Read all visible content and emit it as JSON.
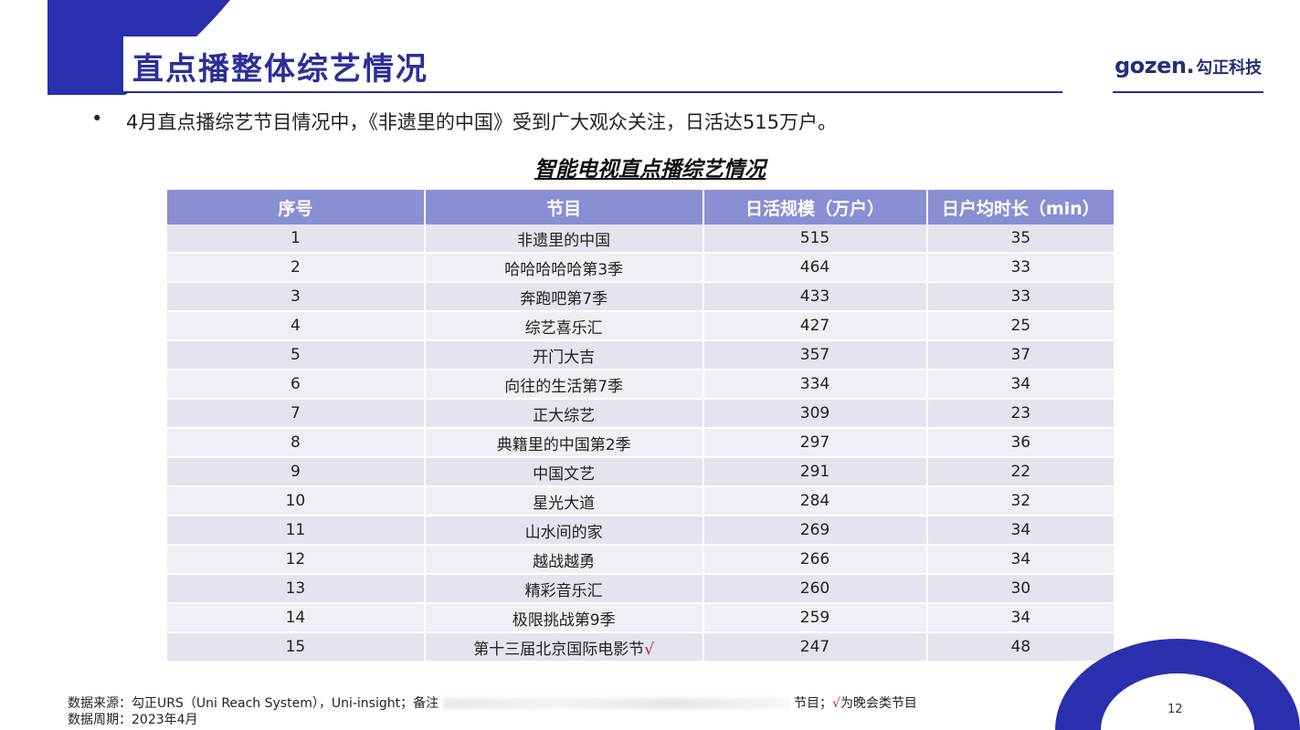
{
  "slide": {
    "title": "直点播整体综艺情况",
    "page_number": "12",
    "accent_color": "#2a2fae",
    "header_color": "#8a8fd4"
  },
  "logo": {
    "en": "gozen",
    "separator": ".",
    "cn": "勾正科技"
  },
  "bullet": {
    "symbol": "•",
    "text": "4月直点播综艺节目情况中，《非遗里的中国》受到广大观众关注，日活达515万户。"
  },
  "table": {
    "title": "智能电视直点播综艺情况",
    "headers": [
      "序号",
      "节目",
      "日活规模（万户）",
      "日户均时长（min）"
    ],
    "rows": [
      {
        "rank": "1",
        "program": "非遗里的中国",
        "dau": "515",
        "duration": "35",
        "mark": ""
      },
      {
        "rank": "2",
        "program": "哈哈哈哈哈第3季",
        "dau": "464",
        "duration": "33",
        "mark": ""
      },
      {
        "rank": "3",
        "program": "奔跑吧第7季",
        "dau": "433",
        "duration": "33",
        "mark": ""
      },
      {
        "rank": "4",
        "program": "综艺喜乐汇",
        "dau": "427",
        "duration": "25",
        "mark": ""
      },
      {
        "rank": "5",
        "program": "开门大吉",
        "dau": "357",
        "duration": "37",
        "mark": ""
      },
      {
        "rank": "6",
        "program": "向往的生活第7季",
        "dau": "334",
        "duration": "34",
        "mark": ""
      },
      {
        "rank": "7",
        "program": "正大综艺",
        "dau": "309",
        "duration": "23",
        "mark": ""
      },
      {
        "rank": "8",
        "program": "典籍里的中国第2季",
        "dau": "297",
        "duration": "36",
        "mark": ""
      },
      {
        "rank": "9",
        "program": "中国文艺",
        "dau": "291",
        "duration": "22",
        "mark": ""
      },
      {
        "rank": "10",
        "program": "星光大道",
        "dau": "284",
        "duration": "32",
        "mark": ""
      },
      {
        "rank": "11",
        "program": "山水间的家",
        "dau": "269",
        "duration": "34",
        "mark": ""
      },
      {
        "rank": "12",
        "program": "越战越勇",
        "dau": "266",
        "duration": "34",
        "mark": ""
      },
      {
        "rank": "13",
        "program": "精彩音乐汇",
        "dau": "260",
        "duration": "30",
        "mark": ""
      },
      {
        "rank": "14",
        "program": "极限挑战第9季",
        "dau": "259",
        "duration": "34",
        "mark": ""
      },
      {
        "rank": "15",
        "program": "第十三届北京国际电影节",
        "dau": "247",
        "duration": "48",
        "mark": "√"
      }
    ]
  },
  "footer": {
    "source_prefix": "数据来源：勾正URS（Uni Reach System），Uni-insight；备注",
    "source_suffix_a": "节目；",
    "source_check": "√",
    "source_suffix_b": "为晚会类节目",
    "period": "数据周期：2023年4月"
  }
}
